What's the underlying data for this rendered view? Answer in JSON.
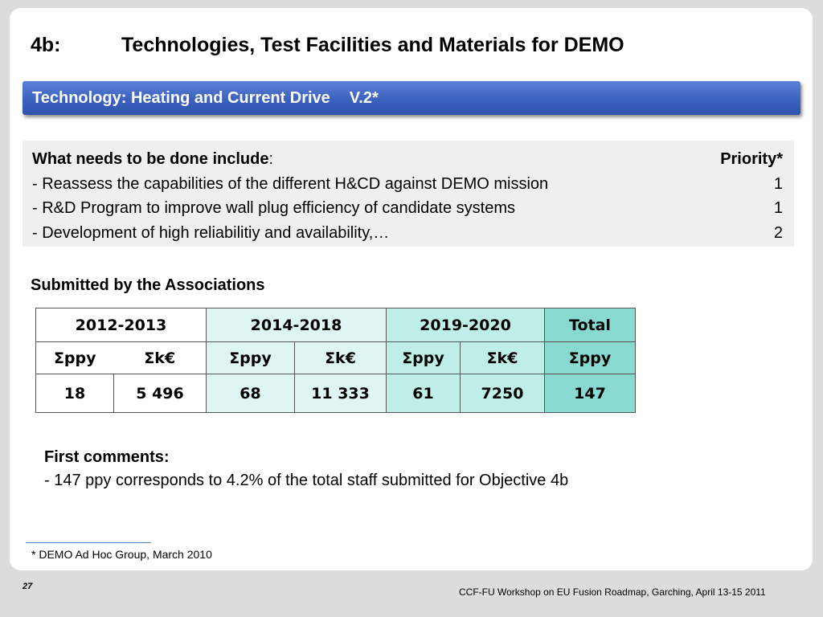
{
  "title": {
    "number": "4b:",
    "text": "Technologies, Test Facilities and Materials for DEMO"
  },
  "bar": {
    "text": "Technology:  Heating and Current Drive",
    "version": "V.2*"
  },
  "needs": {
    "heading": "What needs to be done include",
    "heading_suffix": ":",
    "priority_label": "Priority*",
    "items": [
      {
        "text": "- Reassess the capabilities of the different H&CD against DEMO mission",
        "priority": "1"
      },
      {
        "text": "- R&D Program to improve wall plug efficiency of candidate systems",
        "priority": "1"
      },
      {
        "text": "- Development of high reliabilitiy and availability,…",
        "priority": "2"
      }
    ]
  },
  "submitted": {
    "heading": "Submitted by the Associations"
  },
  "table": {
    "periods": [
      "2012-2013",
      "2014-2018",
      "2019-2020"
    ],
    "total_label": "Total",
    "units": [
      "Σppy",
      "Σk€",
      "Σppy",
      "Σk€",
      "Σppy",
      "Σk€",
      "Σppy"
    ],
    "values": [
      "18",
      "5 496",
      "68",
      "11 333",
      "61",
      "7250",
      "147"
    ]
  },
  "comments": {
    "heading": "First comments:",
    "line": "- 147 ppy corresponds to 4.2% of the total staff submitted for Objective 4b"
  },
  "footnote": "* DEMO Ad Hoc Group, March 2010",
  "page_number": "27",
  "footer": "CCF-FU Workshop on EU Fusion Roadmap, Garching, April 13-15 2011"
}
